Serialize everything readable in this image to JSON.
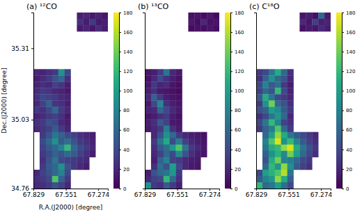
{
  "chart_data": [
    {
      "type": "heatmap",
      "title": "(a) ¹²CO",
      "xlabel": "R.A.(J2000) [degree]",
      "ylabel": "Dec.(J2000) [degree]",
      "xlim": [
        67.829,
        67.19
      ],
      "xticks": [
        67.829,
        67.551,
        67.274
      ],
      "ylim": [
        34.76,
        35.45
      ],
      "yticks": [
        35.31,
        35.03,
        34.76
      ],
      "zlim": [
        0,
        180
      ],
      "zticks": [
        0,
        20,
        40,
        60,
        80,
        100,
        120,
        140,
        160,
        180
      ],
      "cells": [
        [
          null,
          null,
          null,
          null,
          null,
          null,
          null,
          15,
          20,
          12,
          18,
          10
        ],
        [
          null,
          null,
          null,
          null,
          null,
          null,
          null,
          25,
          14,
          30,
          12,
          16
        ],
        [
          null,
          null,
          null,
          null,
          null,
          null,
          null,
          12,
          18,
          10,
          22,
          14
        ],
        [
          null,
          null,
          null,
          null,
          null,
          null,
          null,
          null,
          null,
          null,
          null,
          null
        ],
        [
          null,
          null,
          null,
          null,
          null,
          null,
          null,
          null,
          null,
          null,
          null,
          null
        ],
        [
          null,
          null,
          null,
          null,
          null,
          null,
          null,
          null,
          null,
          null,
          null,
          null
        ],
        [
          null,
          null,
          null,
          null,
          null,
          null,
          null,
          null,
          null,
          null,
          null,
          null
        ],
        [
          null,
          null,
          null,
          null,
          null,
          null,
          null,
          null,
          null,
          null,
          null,
          null
        ],
        [
          null,
          null,
          null,
          null,
          null,
          null,
          null,
          null,
          null,
          null,
          null,
          null
        ],
        [
          20,
          18,
          25,
          30,
          90,
          40,
          null,
          null,
          null,
          null,
          null,
          null
        ],
        [
          15,
          22,
          30,
          45,
          60,
          25,
          null,
          null,
          null,
          null,
          null,
          null
        ],
        [
          18,
          25,
          20,
          35,
          28,
          15,
          null,
          null,
          null,
          null,
          null,
          null
        ],
        [
          22,
          30,
          28,
          20,
          18,
          12,
          null,
          null,
          null,
          null,
          null,
          null
        ],
        [
          25,
          40,
          35,
          30,
          22,
          18,
          null,
          null,
          null,
          null,
          null,
          null
        ],
        [
          20,
          35,
          55,
          28,
          25,
          15,
          null,
          null,
          null,
          null,
          null,
          null
        ],
        [
          30,
          25,
          40,
          60,
          30,
          20,
          null,
          null,
          null,
          null,
          null,
          null
        ],
        [
          18,
          22,
          30,
          35,
          25,
          12,
          null,
          null,
          null,
          null,
          null,
          null
        ],
        [
          25,
          30,
          45,
          40,
          20,
          15,
          null,
          null,
          null,
          null,
          null,
          null
        ],
        [
          20,
          28,
          35,
          50,
          30,
          18,
          null,
          null,
          null,
          null,
          null,
          null
        ],
        [
          null,
          30,
          45,
          70,
          55,
          40,
          35,
          25,
          20,
          15,
          null,
          null
        ],
        [
          null,
          40,
          60,
          90,
          50,
          65,
          45,
          30,
          25,
          18,
          null,
          null
        ],
        [
          null,
          35,
          50,
          60,
          80,
          120,
          60,
          40,
          30,
          20,
          null,
          null
        ],
        [
          null,
          30,
          40,
          55,
          45,
          60,
          50,
          35,
          25,
          15,
          null,
          null
        ],
        [
          null,
          25,
          45,
          70,
          40,
          35,
          30,
          25,
          20,
          null,
          null,
          null
        ],
        [
          null,
          30,
          50,
          60,
          90,
          45,
          30,
          20,
          15,
          null,
          null,
          null
        ],
        [
          20,
          35,
          45,
          60,
          80,
          40,
          null,
          null,
          null,
          null,
          null,
          null
        ],
        [
          25,
          30,
          40,
          130,
          55,
          30,
          null,
          null,
          null,
          null,
          null,
          null
        ],
        [
          20,
          25,
          30,
          45,
          35,
          20,
          null,
          null,
          null,
          null,
          null,
          null
        ]
      ]
    },
    {
      "type": "heatmap",
      "title": "(b) ¹³CO",
      "tick_labels": "x",
      "xlim": [
        67.829,
        67.19
      ],
      "xticks": [
        67.829,
        67.551,
        67.274
      ],
      "ylim": [
        34.76,
        35.45
      ],
      "zlim": [
        0,
        180
      ],
      "zticks": [
        0,
        20,
        40,
        60,
        80,
        100,
        120,
        140,
        160,
        180
      ],
      "cells": [
        [
          null,
          null,
          null,
          null,
          null,
          null,
          null,
          8,
          10,
          6,
          12,
          5
        ],
        [
          null,
          null,
          null,
          null,
          null,
          null,
          null,
          12,
          6,
          20,
          8,
          10
        ],
        [
          null,
          null,
          null,
          null,
          null,
          null,
          null,
          5,
          8,
          6,
          10,
          7
        ],
        [
          null,
          null,
          null,
          null,
          null,
          null,
          null,
          null,
          null,
          null,
          null,
          null
        ],
        [
          null,
          null,
          null,
          null,
          null,
          null,
          null,
          null,
          null,
          null,
          null,
          null
        ],
        [
          null,
          null,
          null,
          null,
          null,
          null,
          null,
          null,
          null,
          null,
          null,
          null
        ],
        [
          null,
          null,
          null,
          null,
          null,
          null,
          null,
          null,
          null,
          null,
          null,
          null
        ],
        [
          null,
          null,
          null,
          null,
          null,
          null,
          null,
          null,
          null,
          null,
          null,
          null
        ],
        [
          null,
          null,
          null,
          null,
          null,
          null,
          null,
          null,
          null,
          null,
          null,
          null
        ],
        [
          10,
          15,
          30,
          70,
          20,
          12,
          null,
          null,
          null,
          null,
          null,
          null
        ],
        [
          8,
          20,
          40,
          25,
          15,
          8,
          null,
          null,
          null,
          null,
          null,
          null
        ],
        [
          12,
          30,
          18,
          22,
          10,
          6,
          null,
          null,
          null,
          null,
          null,
          null
        ],
        [
          15,
          25,
          12,
          10,
          8,
          5,
          null,
          null,
          null,
          null,
          null,
          null
        ],
        [
          20,
          55,
          30,
          15,
          10,
          8,
          null,
          null,
          null,
          null,
          null,
          null
        ],
        [
          12,
          40,
          85,
          25,
          15,
          10,
          null,
          null,
          null,
          null,
          null,
          null
        ],
        [
          18,
          20,
          60,
          40,
          20,
          12,
          null,
          null,
          null,
          null,
          null,
          null
        ],
        [
          10,
          15,
          25,
          30,
          15,
          8,
          null,
          null,
          null,
          null,
          null,
          null
        ],
        [
          15,
          25,
          50,
          35,
          12,
          10,
          null,
          null,
          null,
          null,
          null,
          null
        ],
        [
          12,
          20,
          30,
          75,
          25,
          12,
          null,
          null,
          null,
          null,
          null,
          null
        ],
        [
          null,
          20,
          45,
          90,
          60,
          30,
          20,
          15,
          12,
          8,
          null,
          null
        ],
        [
          null,
          30,
          70,
          110,
          40,
          75,
          35,
          20,
          15,
          10,
          null,
          null
        ],
        [
          null,
          25,
          50,
          65,
          95,
          130,
          70,
          30,
          20,
          12,
          null,
          null
        ],
        [
          null,
          20,
          35,
          60,
          40,
          85,
          45,
          25,
          15,
          10,
          null,
          null
        ],
        [
          null,
          15,
          55,
          80,
          35,
          30,
          20,
          15,
          12,
          null,
          null,
          null
        ],
        [
          null,
          25,
          65,
          45,
          100,
          40,
          20,
          12,
          10,
          null,
          null,
          null
        ],
        [
          15,
          45,
          60,
          70,
          95,
          30,
          null,
          null,
          null,
          null,
          null,
          null
        ],
        [
          20,
          35,
          40,
          120,
          60,
          25,
          null,
          null,
          null,
          null,
          null,
          null
        ],
        [
          90,
          30,
          25,
          50,
          30,
          15,
          null,
          null,
          null,
          null,
          null,
          null
        ]
      ]
    },
    {
      "type": "heatmap",
      "title": "(c) C¹⁸O",
      "tick_labels": "x",
      "xlim": [
        67.829,
        67.19
      ],
      "xticks": [
        67.829,
        67.551,
        67.274
      ],
      "ylim": [
        34.76,
        35.45
      ],
      "zlim": [
        0,
        180
      ],
      "zticks": [
        0,
        20,
        40,
        60,
        80,
        100,
        120,
        140,
        160,
        180
      ],
      "cells": [
        [
          null,
          null,
          null,
          null,
          null,
          null,
          null,
          10,
          15,
          8,
          60,
          12
        ],
        [
          null,
          null,
          null,
          null,
          null,
          null,
          null,
          20,
          10,
          35,
          15,
          18
        ],
        [
          null,
          null,
          null,
          null,
          null,
          null,
          null,
          8,
          12,
          10,
          20,
          14
        ],
        [
          null,
          null,
          null,
          null,
          null,
          null,
          null,
          null,
          null,
          null,
          null,
          null
        ],
        [
          null,
          null,
          null,
          null,
          null,
          null,
          null,
          null,
          null,
          null,
          null,
          null
        ],
        [
          null,
          null,
          null,
          null,
          null,
          null,
          null,
          null,
          null,
          null,
          null,
          null
        ],
        [
          null,
          null,
          null,
          null,
          null,
          null,
          null,
          null,
          null,
          null,
          null,
          null
        ],
        [
          null,
          null,
          null,
          null,
          null,
          null,
          null,
          null,
          null,
          null,
          null,
          null
        ],
        [
          null,
          null,
          null,
          null,
          null,
          null,
          null,
          null,
          null,
          null,
          null,
          null
        ],
        [
          30,
          40,
          70,
          110,
          60,
          25,
          null,
          null,
          null,
          null,
          null,
          null
        ],
        [
          25,
          55,
          90,
          60,
          45,
          20,
          null,
          null,
          null,
          null,
          null,
          null
        ],
        [
          40,
          80,
          50,
          65,
          30,
          15,
          null,
          null,
          null,
          null,
          null,
          null
        ],
        [
          35,
          60,
          45,
          120,
          40,
          18,
          null,
          null,
          null,
          null,
          null,
          null
        ],
        [
          50,
          110,
          70,
          40,
          30,
          20,
          null,
          null,
          null,
          null,
          null,
          null
        ],
        [
          30,
          90,
          140,
          60,
          45,
          25,
          null,
          null,
          null,
          null,
          null,
          null
        ],
        [
          45,
          55,
          100,
          85,
          50,
          30,
          null,
          null,
          null,
          null,
          null,
          null
        ],
        [
          25,
          40,
          70,
          95,
          60,
          20,
          null,
          null,
          null,
          null,
          null,
          null
        ],
        [
          40,
          70,
          120,
          80,
          35,
          25,
          null,
          null,
          null,
          null,
          null,
          null
        ],
        [
          30,
          55,
          75,
          130,
          60,
          30,
          null,
          null,
          null,
          null,
          null,
          null
        ],
        [
          null,
          60,
          100,
          150,
          110,
          70,
          50,
          40,
          30,
          20,
          null,
          null
        ],
        [
          null,
          80,
          130,
          170,
          90,
          120,
          80,
          50,
          35,
          25,
          null,
          null
        ],
        [
          null,
          70,
          110,
          120,
          150,
          170,
          110,
          70,
          45,
          30,
          null,
          null
        ],
        [
          null,
          55,
          90,
          115,
          85,
          140,
          100,
          60,
          40,
          25,
          null,
          null
        ],
        [
          null,
          45,
          110,
          140,
          80,
          75,
          60,
          40,
          30,
          null,
          null,
          null
        ],
        [
          null,
          60,
          120,
          95,
          150,
          90,
          50,
          35,
          25,
          null,
          null,
          null
        ],
        [
          40,
          100,
          115,
          130,
          160,
          70,
          null,
          null,
          null,
          null,
          null,
          null
        ],
        [
          50,
          80,
          95,
          150,
          110,
          55,
          null,
          null,
          null,
          null,
          null,
          null
        ],
        [
          120,
          60,
          70,
          100,
          65,
          40,
          null,
          null,
          null,
          null,
          null,
          null
        ]
      ]
    }
  ]
}
